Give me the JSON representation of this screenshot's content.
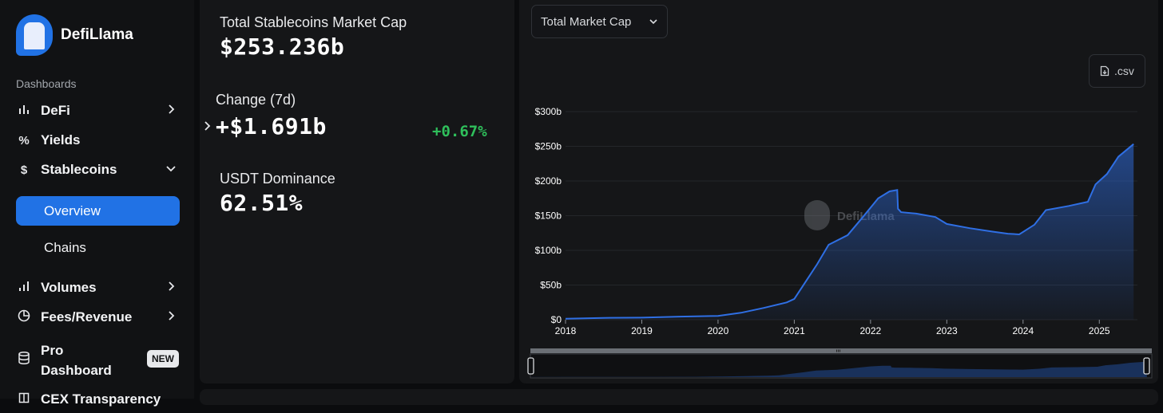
{
  "brand": {
    "name": "DefiLlama",
    "watermark": "DefiLlama"
  },
  "sidebar": {
    "section_label": "Dashboards",
    "items": [
      {
        "label": "DeFi",
        "icon": "bar-chart-icon",
        "has_chevron": "right"
      },
      {
        "label": "Yields",
        "icon": "percent-icon",
        "has_chevron": "none"
      },
      {
        "label": "Stablecoins",
        "icon": "dollar-icon",
        "has_chevron": "down"
      }
    ],
    "sub_items": [
      {
        "label": "Overview",
        "active": true
      },
      {
        "label": "Chains",
        "active": false
      }
    ],
    "more_items": [
      {
        "label": "Volumes",
        "icon": "volume-bars-icon",
        "has_chevron": "right"
      },
      {
        "label": "Fees/Revenue",
        "icon": "pie-chart-icon",
        "has_chevron": "right"
      },
      {
        "label_line1": "Pro",
        "label_line2": "Dashboard",
        "icon": "database-icon",
        "badge": "NEW"
      },
      {
        "label": "CEX Transparency",
        "icon": "book-icon"
      }
    ]
  },
  "stats": {
    "market_cap": {
      "label": "Total Stablecoins Market Cap",
      "value": "$253.236b"
    },
    "change": {
      "label": "Change (7d)",
      "value": "+$1.691b",
      "percent": "+0.67%"
    },
    "dominance": {
      "label": "USDT Dominance",
      "value": "62.51%"
    }
  },
  "chart_controls": {
    "metric_select": "Total Market Cap",
    "csv_label": ".csv"
  },
  "colors": {
    "accent": "#2172e5",
    "positive": "#2fbf5b",
    "series": "#2f6fe4"
  },
  "chart_data": {
    "type": "area",
    "title": "",
    "xlabel": "",
    "ylabel": "",
    "ylim": [
      0,
      300
    ],
    "y_ticks": [
      "$0",
      "$50b",
      "$100b",
      "$150b",
      "$200b",
      "$250b",
      "$300b"
    ],
    "y_tick_values": [
      0,
      50,
      100,
      150,
      200,
      250,
      300
    ],
    "x_ticks": [
      "2018",
      "2019",
      "2020",
      "2021",
      "2022",
      "2023",
      "2024",
      "2025"
    ],
    "xlim": [
      2018.0,
      2025.5
    ],
    "grid": true,
    "legend": "none",
    "series": [
      {
        "values": [
          [
            2018.0,
            1.5
          ],
          [
            2018.5,
            2.6
          ],
          [
            2019.0,
            3.0
          ],
          [
            2019.5,
            4.5
          ],
          [
            2020.0,
            5.5
          ],
          [
            2020.3,
            10
          ],
          [
            2020.6,
            17
          ],
          [
            2020.9,
            25
          ],
          [
            2021.0,
            30
          ],
          [
            2021.15,
            55
          ],
          [
            2021.3,
            80
          ],
          [
            2021.45,
            108
          ],
          [
            2021.7,
            122
          ],
          [
            2021.9,
            148
          ],
          [
            2022.1,
            175
          ],
          [
            2022.25,
            185
          ],
          [
            2022.35,
            187
          ],
          [
            2022.36,
            160
          ],
          [
            2022.4,
            155
          ],
          [
            2022.6,
            153
          ],
          [
            2022.85,
            148
          ],
          [
            2023.0,
            138
          ],
          [
            2023.3,
            132
          ],
          [
            2023.6,
            127
          ],
          [
            2023.8,
            124
          ],
          [
            2023.95,
            123
          ],
          [
            2024.15,
            137
          ],
          [
            2024.3,
            158
          ],
          [
            2024.6,
            164
          ],
          [
            2024.85,
            170
          ],
          [
            2024.95,
            195
          ],
          [
            2025.1,
            210
          ],
          [
            2025.25,
            235
          ],
          [
            2025.45,
            253.2
          ]
        ]
      }
    ]
  }
}
